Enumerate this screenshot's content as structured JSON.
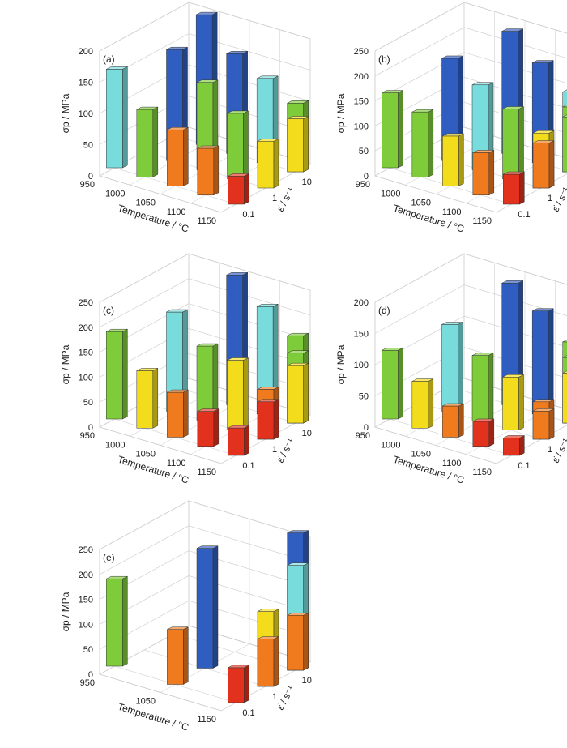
{
  "figure": {
    "axes": {
      "temperature_label": "Temperature / °C",
      "strain_rate_label": "ε̇ / s⁻¹",
      "stress_label": "σp / MPa",
      "strain_rate_ticks": [
        "0.1",
        "1",
        "10"
      ]
    }
  },
  "colors": {
    "blue": "#2f5ec0",
    "cyan": "#79dcdc",
    "green": "#7fcc3a",
    "yellow": "#f2dc1c",
    "orange": "#f07a1e",
    "red": "#e2321e"
  },
  "chart_data": [
    {
      "type": "bar",
      "panel_label": "(a)",
      "xlabel": "Temperature / °C",
      "ylabel": "σp / MPa",
      "zlabel": "ε̇ / s⁻¹",
      "temperatures": [
        950,
        1000,
        1050,
        1100,
        1150
      ],
      "strain_rates": [
        "0.1",
        "1",
        "10"
      ],
      "zlim": [
        0,
        200
      ],
      "zticks": [
        0,
        50,
        100,
        150,
        200
      ],
      "bars": [
        {
          "T": 950,
          "rate": "0.1",
          "value": 158,
          "color": "cyan"
        },
        {
          "T": 1000,
          "rate": "0.1",
          "value": 108,
          "color": "green"
        },
        {
          "T": 1050,
          "rate": "0.1",
          "value": 90,
          "color": "orange"
        },
        {
          "T": 1100,
          "rate": "0.1",
          "value": 75,
          "color": "orange"
        },
        {
          "T": 1150,
          "rate": "0.1",
          "value": 45,
          "color": "red"
        },
        {
          "T": 950,
          "rate": "1",
          "value": 0,
          "color": "blue"
        },
        {
          "T": 1000,
          "rate": "1",
          "value": 178,
          "color": "blue"
        },
        {
          "T": 1050,
          "rate": "1",
          "value": 140,
          "color": "green"
        },
        {
          "T": 1100,
          "rate": "1",
          "value": 105,
          "color": "green"
        },
        {
          "T": 1150,
          "rate": "1",
          "value": 75,
          "color": "yellow"
        },
        {
          "T": 950,
          "rate": "10",
          "value": 0,
          "color": "blue"
        },
        {
          "T": 1000,
          "rate": "10",
          "value": 208,
          "color": "blue"
        },
        {
          "T": 1050,
          "rate": "10",
          "value": 160,
          "color": "blue"
        },
        {
          "T": 1100,
          "rate": "10",
          "value": 135,
          "color": "cyan"
        },
        {
          "T": 1150,
          "rate": "10",
          "value": 110,
          "color": "green"
        },
        {
          "T": 1200,
          "rate": "10",
          "value": 85,
          "color": "yellow"
        }
      ]
    },
    {
      "type": "bar",
      "panel_label": "(b)",
      "xlabel": "Temperature / °C",
      "ylabel": "σp / MPa",
      "zlabel": "ε̇ / s⁻¹",
      "temperatures": [
        950,
        1000,
        1050,
        1100,
        1150
      ],
      "strain_rates": [
        "0.1",
        "1",
        "10"
      ],
      "zlim": [
        0,
        250
      ],
      "zticks": [
        0,
        50,
        100,
        150,
        200,
        250
      ],
      "bars": [
        {
          "T": 950,
          "rate": "0.1",
          "value": 150,
          "color": "green"
        },
        {
          "T": 1000,
          "rate": "0.1",
          "value": 130,
          "color": "green"
        },
        {
          "T": 1050,
          "rate": "0.1",
          "value": 100,
          "color": "yellow"
        },
        {
          "T": 1100,
          "rate": "0.1",
          "value": 85,
          "color": "orange"
        },
        {
          "T": 1150,
          "rate": "0.1",
          "value": 60,
          "color": "red"
        },
        {
          "T": 1000,
          "rate": "1",
          "value": 205,
          "color": "blue"
        },
        {
          "T": 1050,
          "rate": "1",
          "value": 170,
          "color": "cyan"
        },
        {
          "T": 1100,
          "rate": "1",
          "value": 140,
          "color": "green"
        },
        {
          "T": 1150,
          "rate": "1",
          "value": 110,
          "color": "yellow"
        },
        {
          "T": 1200,
          "rate": "1",
          "value": 90,
          "color": "orange"
        },
        {
          "T": 1050,
          "rate": "10",
          "value": 245,
          "color": "blue"
        },
        {
          "T": 1100,
          "rate": "10",
          "value": 200,
          "color": "blue"
        },
        {
          "T": 1150,
          "rate": "10",
          "value": 160,
          "color": "cyan"
        },
        {
          "T": 1200,
          "rate": "10",
          "value": 130,
          "color": "green"
        },
        {
          "T": 1250,
          "rate": "10",
          "value": 110,
          "color": "green"
        }
      ]
    },
    {
      "type": "bar",
      "panel_label": "(c)",
      "xlabel": "Temperature / °C",
      "ylabel": "σp / MPa",
      "zlabel": "ε̇ / s⁻¹",
      "temperatures": [
        950,
        1000,
        1050,
        1100,
        1150
      ],
      "strain_rates": [
        "0.1",
        "1",
        "10"
      ],
      "zlim": [
        0,
        250
      ],
      "zticks": [
        0,
        50,
        100,
        150,
        200,
        250
      ],
      "bars": [
        {
          "T": 950,
          "rate": "0.1",
          "value": 175,
          "color": "green"
        },
        {
          "T": 1000,
          "rate": "0.1",
          "value": 115,
          "color": "yellow"
        },
        {
          "T": 1050,
          "rate": "0.1",
          "value": 90,
          "color": "orange"
        },
        {
          "T": 1100,
          "rate": "0.1",
          "value": 70,
          "color": "red"
        },
        {
          "T": 1150,
          "rate": "0.1",
          "value": 55,
          "color": "red"
        },
        {
          "T": 1000,
          "rate": "1",
          "value": 200,
          "color": "cyan"
        },
        {
          "T": 1050,
          "rate": "1",
          "value": 150,
          "color": "green"
        },
        {
          "T": 1100,
          "rate": "1",
          "value": 140,
          "color": "yellow"
        },
        {
          "T": 1150,
          "rate": "1",
          "value": 100,
          "color": "orange"
        },
        {
          "T": 1200,
          "rate": "1",
          "value": 75,
          "color": "red"
        },
        {
          "T": 1050,
          "rate": "10",
          "value": 260,
          "color": "blue"
        },
        {
          "T": 1100,
          "rate": "10",
          "value": 215,
          "color": "cyan"
        },
        {
          "T": 1150,
          "rate": "10",
          "value": 175,
          "color": "green"
        },
        {
          "T": 1200,
          "rate": "10",
          "value": 140,
          "color": "green"
        },
        {
          "T": 1250,
          "rate": "10",
          "value": 115,
          "color": "yellow"
        }
      ]
    },
    {
      "type": "bar",
      "panel_label": "(d)",
      "xlabel": "Temperature / °C",
      "ylabel": "σp / MPa",
      "zlabel": "ε̇ / s⁻¹",
      "temperatures": [
        950,
        1000,
        1050,
        1100,
        1150
      ],
      "strain_rates": [
        "0.1",
        "1",
        "10"
      ],
      "zlim": [
        0,
        200
      ],
      "zticks": [
        0,
        50,
        100,
        150,
        200
      ],
      "bars": [
        {
          "T": 950,
          "rate": "0.1",
          "value": 110,
          "color": "green"
        },
        {
          "T": 1000,
          "rate": "0.1",
          "value": 75,
          "color": "yellow"
        },
        {
          "T": 1050,
          "rate": "0.1",
          "value": 50,
          "color": "orange"
        },
        {
          "T": 1100,
          "rate": "0.1",
          "value": 40,
          "color": "red"
        },
        {
          "T": 1150,
          "rate": "0.1",
          "value": 28,
          "color": "red"
        },
        {
          "T": 1000,
          "rate": "1",
          "value": 140,
          "color": "cyan"
        },
        {
          "T": 1050,
          "rate": "1",
          "value": 105,
          "color": "green"
        },
        {
          "T": 1100,
          "rate": "1",
          "value": 85,
          "color": "yellow"
        },
        {
          "T": 1150,
          "rate": "1",
          "value": 60,
          "color": "orange"
        },
        {
          "T": 1200,
          "rate": "1",
          "value": 45,
          "color": "orange"
        },
        {
          "T": 1050,
          "rate": "10",
          "value": 195,
          "color": "blue"
        },
        {
          "T": 1100,
          "rate": "10",
          "value": 165,
          "color": "blue"
        },
        {
          "T": 1150,
          "rate": "10",
          "value": 130,
          "color": "green"
        },
        {
          "T": 1200,
          "rate": "10",
          "value": 105,
          "color": "green"
        },
        {
          "T": 1250,
          "rate": "10",
          "value": 80,
          "color": "yellow"
        }
      ]
    },
    {
      "type": "bar",
      "panel_label": "(e)",
      "xlabel": "Temperature / °C",
      "ylabel": "σp / MPa",
      "zlabel": "ε̇ / s⁻¹",
      "temperatures": [
        950,
        1050,
        1150
      ],
      "strain_rates": [
        "0.1",
        "1",
        "10"
      ],
      "zlim": [
        0,
        250
      ],
      "zticks": [
        0,
        50,
        100,
        150,
        200,
        250
      ],
      "bars": [
        {
          "T": 950,
          "rate": "0.1",
          "value": 175,
          "color": "green"
        },
        {
          "T": 1050,
          "rate": "0.1",
          "value": 110,
          "color": "orange"
        },
        {
          "T": 1150,
          "rate": "0.1",
          "value": 70,
          "color": "red"
        },
        {
          "T": 1050,
          "rate": "1",
          "value": 240,
          "color": "blue"
        },
        {
          "T": 1150,
          "rate": "1",
          "value": 150,
          "color": "yellow"
        },
        {
          "T": 1250,
          "rate": "1",
          "value": 95,
          "color": "orange"
        },
        {
          "T": 1150,
          "rate": "10",
          "value": 275,
          "color": "blue"
        },
        {
          "T": 1250,
          "rate": "10",
          "value": 210,
          "color": "cyan"
        },
        {
          "T": 1350,
          "rate": "10",
          "value": 110,
          "color": "orange"
        }
      ]
    }
  ]
}
